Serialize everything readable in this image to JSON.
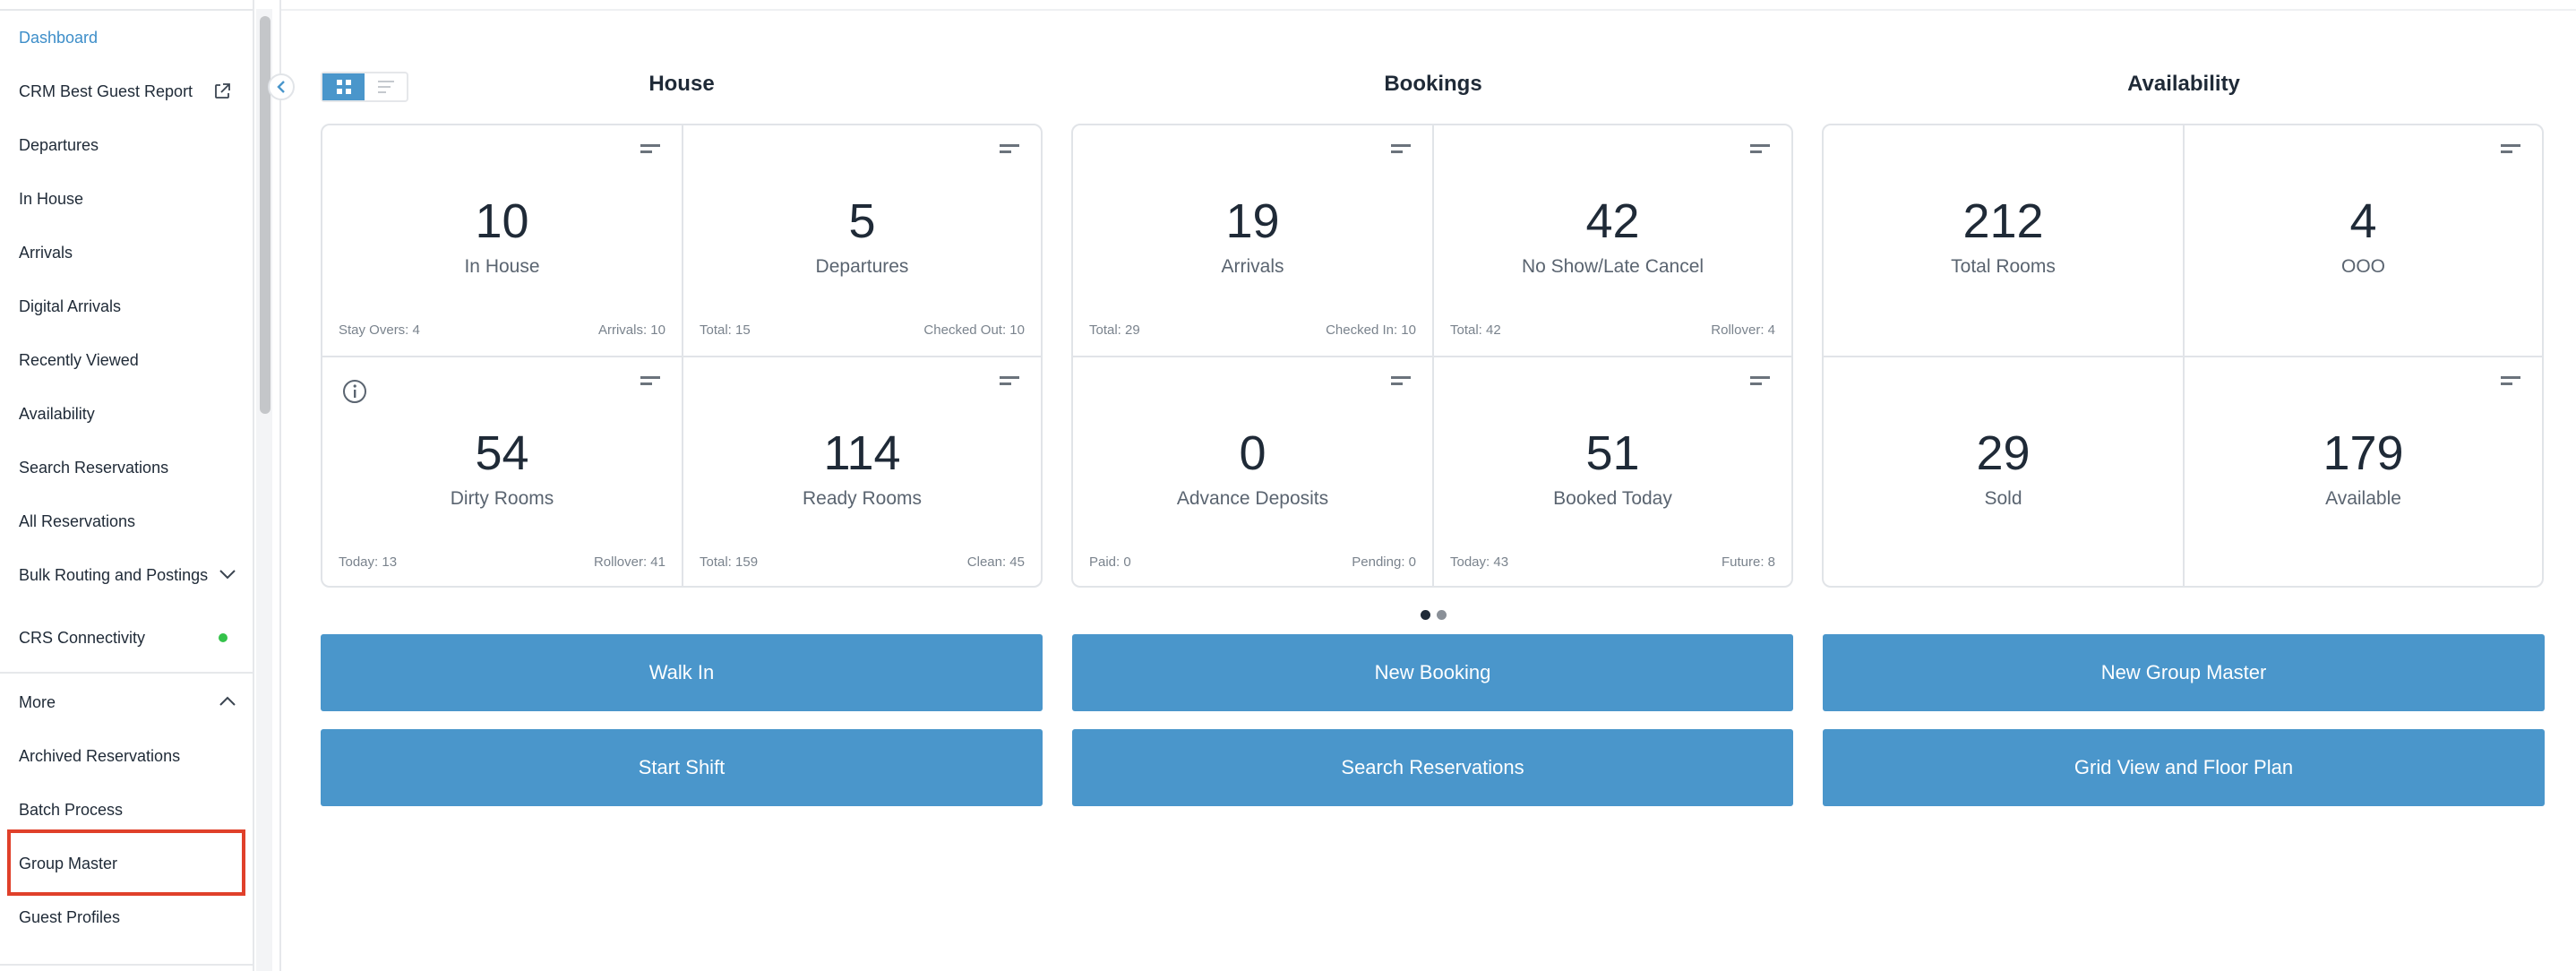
{
  "sidebar": {
    "items": [
      {
        "label": "Dashboard",
        "active": true
      },
      {
        "label": "CRM Best Guest Report",
        "icon": "external-link-icon"
      },
      {
        "label": "Departures"
      },
      {
        "label": "In House"
      },
      {
        "label": "Arrivals"
      },
      {
        "label": "Digital Arrivals"
      },
      {
        "label": "Recently Viewed"
      },
      {
        "label": "Availability"
      },
      {
        "label": "Search Reservations"
      },
      {
        "label": "All Reservations"
      },
      {
        "label": "Bulk Routing and Postings",
        "icon": "chevron-down-icon"
      },
      {
        "label": "CRS Connectivity",
        "status_color": "#34c24a"
      }
    ],
    "more": {
      "label": "More",
      "icon": "chevron-up-icon"
    },
    "more_items": [
      {
        "label": "Archived Reservations"
      },
      {
        "label": "Batch Process"
      },
      {
        "label": "Group Master",
        "highlighted": true
      },
      {
        "label": "Guest Profiles"
      }
    ]
  },
  "sections": {
    "house": "House",
    "bookings": "Bookings",
    "availability": "Availability"
  },
  "cards": {
    "in_house": {
      "value": "10",
      "label": "In House",
      "foot_left": "Stay Overs: 4",
      "foot_right": "Arrivals: 10"
    },
    "departures": {
      "value": "5",
      "label": "Departures",
      "foot_left": "Total: 15",
      "foot_right": "Checked Out: 10"
    },
    "dirty_rooms": {
      "value": "54",
      "label": "Dirty Rooms",
      "foot_left": "Today: 13",
      "foot_right": "Rollover: 41"
    },
    "ready_rooms": {
      "value": "114",
      "label": "Ready Rooms",
      "foot_left": "Total: 159",
      "foot_right": "Clean: 45"
    },
    "arrivals": {
      "value": "19",
      "label": "Arrivals",
      "foot_left": "Total: 29",
      "foot_right": "Checked In: 10"
    },
    "no_show": {
      "value": "42",
      "label": "No Show/Late Cancel",
      "foot_left": "Total: 42",
      "foot_right": "Rollover: 4"
    },
    "advance_deposits": {
      "value": "0",
      "label": "Advance Deposits",
      "foot_left": "Paid: 0",
      "foot_right": "Pending: 0"
    },
    "booked_today": {
      "value": "51",
      "label": "Booked Today",
      "foot_left": "Today: 43",
      "foot_right": "Future: 8"
    },
    "total_rooms": {
      "value": "212",
      "label": "Total Rooms"
    },
    "ooo": {
      "value": "4",
      "label": "OOO"
    },
    "sold": {
      "value": "29",
      "label": "Sold"
    },
    "available": {
      "value": "179",
      "label": "Available"
    }
  },
  "actions": {
    "walk_in": "Walk In",
    "new_booking": "New Booking",
    "new_group_master": "New Group Master",
    "start_shift": "Start Shift",
    "search_reservations": "Search Reservations",
    "grid_view": "Grid View and Floor Plan"
  },
  "colors": {
    "accent": "#4a96cb",
    "active_nav": "#3d8ec9",
    "highlight_border": "#e0402a",
    "status_ok": "#34c24a"
  }
}
